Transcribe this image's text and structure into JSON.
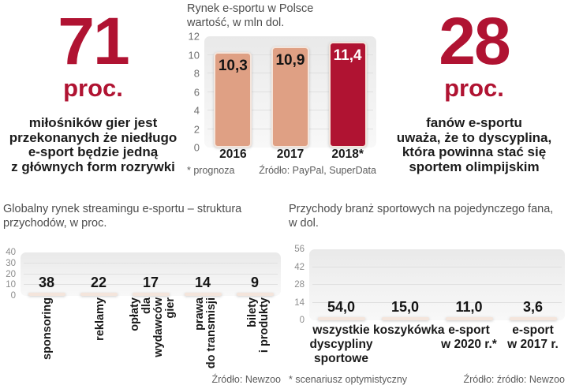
{
  "colors": {
    "accent_red": "#b01332",
    "bar_salmon": "#dfa084",
    "bar_border": "#f4e5dc",
    "band_gray": "#ececec",
    "text_dark": "#1c1c1c",
    "text_gray": "#5c5c5c"
  },
  "stats": {
    "left": {
      "value": "71",
      "unit": "proc.",
      "lines": [
        "miłośników gier jest",
        "przekonanych że niedługo",
        "e-sport będzie jedną",
        "z głównych form rozrywki"
      ]
    },
    "right": {
      "value": "28",
      "unit": "proc.",
      "lines": [
        "fanów e-sportu",
        "uważa, że to dyscyplina,",
        "która powinna stać się",
        "sportem olimpijskim"
      ]
    }
  },
  "chart_data": [
    {
      "type": "bar",
      "title": "Rynek e-sportu w Polsce wartość, w mln dol.",
      "title_lines": [
        "Rynek e-sportu w Polsce",
        "wartość, w mln dol."
      ],
      "categories": [
        "2016",
        "2017",
        "2018*"
      ],
      "category_lines": [
        [
          "2016"
        ],
        [
          "2017"
        ],
        [
          "2018*"
        ]
      ],
      "values": [
        10.3,
        10.9,
        11.4
      ],
      "value_labels": [
        "10,3",
        "10,9",
        "11,4"
      ],
      "highlight_index": 2,
      "ylim": [
        0,
        12
      ],
      "yticks": [
        0,
        2,
        4,
        6,
        8,
        10,
        12
      ],
      "grid": true,
      "legend": false,
      "value_label_position": "inside",
      "category_style": "horizontal",
      "footnote": "* prognoza",
      "source": "Źródło: PayPal, SuperData"
    },
    {
      "type": "bar",
      "title": "Globalny rynek streamingu e-sportu – struktura przychodów, w proc.",
      "title_lines": [
        "Globalny rynek streamingu e-sportu – struktura",
        "przychodów, w proc."
      ],
      "categories": [
        "sponsoring",
        "reklamy",
        "opłaty dla wydawców gier",
        "prawa do transmisji",
        "bilety i produkty"
      ],
      "category_lines": [
        [
          "sponsoring"
        ],
        [
          "reklamy"
        ],
        [
          "opłaty",
          "dla",
          "wydawców",
          "gier"
        ],
        [
          "prawa",
          "do transmisji"
        ],
        [
          "bilety",
          "i produkty"
        ]
      ],
      "values": [
        38,
        22,
        17,
        14,
        9
      ],
      "value_labels": [
        "38",
        "22",
        "17",
        "14",
        "9"
      ],
      "highlight_index": 0,
      "ylim": [
        0,
        40
      ],
      "yticks": [
        0,
        10,
        20,
        30,
        40
      ],
      "grid": true,
      "legend": false,
      "value_label_position": "above",
      "category_style": "rotated",
      "footnote": "",
      "source": "Źródło: Newzoo"
    },
    {
      "type": "bar",
      "title": "Przychody branż sportowych na pojedynczego fana, w dol.",
      "title_lines": [
        "Przychody branż sportowych na pojedynczego fana,",
        "w dol."
      ],
      "categories": [
        "wszystkie dyscypliny sportowe",
        "koszykówka",
        "e-sport w 2020 r.*",
        "e-sport w 2017 r."
      ],
      "category_lines": [
        [
          "wszystkie",
          "dyscypliny",
          "sportowe"
        ],
        [
          "koszykówka"
        ],
        [
          "e-sport",
          "w 2020 r.*"
        ],
        [
          "e-sport",
          "w 2017 r."
        ]
      ],
      "values": [
        54.0,
        15.0,
        11.0,
        3.6
      ],
      "value_labels": [
        "54,0",
        "15,0",
        "11,0",
        "3,6"
      ],
      "highlight_index": 0,
      "ylim": [
        0,
        56
      ],
      "yticks": [
        0,
        14,
        28,
        42,
        56
      ],
      "grid": true,
      "legend": false,
      "value_label_position": "above",
      "category_style": "horizontal",
      "footnote": "* scenariusz optymistyczny",
      "source": "Źródło: źródło: Newzoo"
    }
  ]
}
